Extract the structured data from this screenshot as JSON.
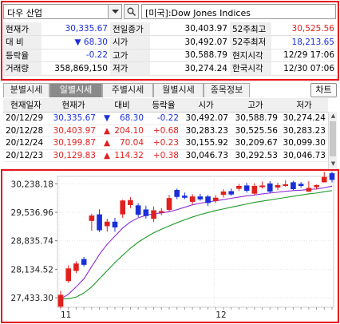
{
  "search": {
    "stock_name": "다우 산업",
    "index_text": "[미국]:Dow Jones Indices"
  },
  "quote": {
    "rows": [
      [
        {
          "t": "현재가",
          "k": "lab"
        },
        {
          "t": "30,335.67",
          "k": "val blue"
        },
        {
          "t": "전일종가",
          "k": "lab"
        },
        {
          "t": "30,403.97",
          "k": "val"
        },
        {
          "t": "52주최고",
          "k": "lab"
        },
        {
          "t": "30,525.56",
          "k": "val red"
        }
      ],
      [
        {
          "t": "대  비",
          "k": "lab"
        },
        {
          "t": "▼   68.30",
          "k": "val blue"
        },
        {
          "t": "시가",
          "k": "lab"
        },
        {
          "t": "30,492.07",
          "k": "val"
        },
        {
          "t": "52주최저",
          "k": "lab"
        },
        {
          "t": "18,213.65",
          "k": "val blue"
        }
      ],
      [
        {
          "t": "등락율",
          "k": "lab"
        },
        {
          "t": "-0.22",
          "k": "val blue"
        },
        {
          "t": "고가",
          "k": "lab"
        },
        {
          "t": "30,588.79",
          "k": "val"
        },
        {
          "t": "현지시각",
          "k": "lab"
        },
        {
          "t": "12/29 17:06",
          "k": "val"
        }
      ],
      [
        {
          "t": "거래량",
          "k": "lab"
        },
        {
          "t": "358,869,150",
          "k": "val"
        },
        {
          "t": "저가",
          "k": "lab"
        },
        {
          "t": "30,274.24",
          "k": "val"
        },
        {
          "t": "한국시각",
          "k": "lab"
        },
        {
          "t": "12/30 07:06",
          "k": "val"
        }
      ]
    ]
  },
  "tabs": [
    "분별시세",
    "일별시세",
    "주별시세",
    "월별시세",
    "종목정보"
  ],
  "active_tab": 1,
  "chart_button": "차트",
  "daily": {
    "headers": [
      "현재일자",
      "현재가",
      "대비",
      "등락율",
      "시가",
      "고가",
      "저가"
    ],
    "rows": [
      {
        "date": "20/12/29",
        "price": "30,335.67",
        "arrow": "▼",
        "change": "68.30",
        "rate": "-0.22",
        "open": "30,492.07",
        "high": "30,588.79",
        "low": "30,274.24",
        "dir": "down"
      },
      {
        "date": "20/12/28",
        "price": "30,403.97",
        "arrow": "▲",
        "change": "204.10",
        "rate": "+0.68",
        "open": "30,283.23",
        "high": "30,525.56",
        "low": "30,283.23",
        "dir": "up"
      },
      {
        "date": "20/12/24",
        "price": "30,199.87",
        "arrow": "▲",
        "change": "70.04",
        "rate": "+0.23",
        "open": "30,155.92",
        "high": "30,209.67",
        "low": "30,099.30",
        "dir": "up"
      },
      {
        "date": "20/12/23",
        "price": "30,129.83",
        "arrow": "▲",
        "change": "114.32",
        "rate": "+0.38",
        "open": "30,046.73",
        "high": "30,292.53",
        "low": "30,046.73",
        "dir": "up"
      }
    ]
  },
  "colors": {
    "up": "#e0201e",
    "down": "#1a2fd8",
    "ma_short": "#8e2bd4",
    "ma_long": "#1e9a2a",
    "frame": "#e8141a"
  },
  "chart_data": {
    "type": "candlestick",
    "y_ticks": [
      "30,238.18",
      "29,536.96",
      "28,835.74",
      "28,134.52",
      "27,433.30"
    ],
    "x_ticks": [
      {
        "label": "11",
        "index": 0
      },
      {
        "label": "12",
        "index": 20
      }
    ],
    "ylim": [
      27200,
      30420
    ],
    "candles": [
      {
        "o": 27220,
        "c": 27500,
        "h": 27600,
        "l": 27180
      },
      {
        "o": 27850,
        "c": 28150,
        "h": 28230,
        "l": 27800
      },
      {
        "o": 28100,
        "c": 28270,
        "h": 28330,
        "l": 28040
      },
      {
        "o": 28380,
        "c": 28250,
        "h": 28440,
        "l": 28200
      },
      {
        "o": 29330,
        "c": 29450,
        "h": 29500,
        "l": 29080
      },
      {
        "o": 29480,
        "c": 29100,
        "h": 29610,
        "l": 29050
      },
      {
        "o": 29200,
        "c": 29300,
        "h": 29380,
        "l": 29060
      },
      {
        "o": 29300,
        "c": 29170,
        "h": 29400,
        "l": 29060
      },
      {
        "o": 29490,
        "c": 29820,
        "h": 29850,
        "l": 29400
      },
      {
        "o": 29720,
        "c": 29830,
        "h": 29910,
        "l": 29640
      },
      {
        "o": 29700,
        "c": 29480,
        "h": 29760,
        "l": 29420
      },
      {
        "o": 29600,
        "c": 29450,
        "h": 29700,
        "l": 29380
      },
      {
        "o": 29380,
        "c": 29580,
        "h": 29680,
        "l": 29300
      },
      {
        "o": 29550,
        "c": 29560,
        "h": 29640,
        "l": 29460
      },
      {
        "o": 29600,
        "c": 29880,
        "h": 29960,
        "l": 29560
      },
      {
        "o": 30080,
        "c": 29920,
        "h": 30120,
        "l": 29860
      },
      {
        "o": 29940,
        "c": 29900,
        "h": 30020,
        "l": 29860
      },
      {
        "o": 29800,
        "c": 29920,
        "h": 29980,
        "l": 29720
      },
      {
        "o": 29920,
        "c": 29860,
        "h": 29990,
        "l": 29820
      },
      {
        "o": 29920,
        "c": 29770,
        "h": 29960,
        "l": 29690
      },
      {
        "o": 29820,
        "c": 29890,
        "h": 29960,
        "l": 29760
      },
      {
        "o": 29970,
        "c": 30040,
        "h": 30100,
        "l": 29900
      },
      {
        "o": 30050,
        "c": 29980,
        "h": 30120,
        "l": 29940
      },
      {
        "o": 30120,
        "c": 30180,
        "h": 30230,
        "l": 30060
      },
      {
        "o": 30190,
        "c": 30070,
        "h": 30260,
        "l": 30020
      },
      {
        "o": 30000,
        "c": 30180,
        "h": 30250,
        "l": 29960
      },
      {
        "o": 30180,
        "c": 30190,
        "h": 30290,
        "l": 30120
      },
      {
        "o": 30240,
        "c": 30050,
        "h": 30300,
        "l": 30010
      },
      {
        "o": 30150,
        "c": 30200,
        "h": 30260,
        "l": 30080
      },
      {
        "o": 30200,
        "c": 30220,
        "h": 30320,
        "l": 30160
      },
      {
        "o": 30270,
        "c": 30110,
        "h": 30310,
        "l": 30080
      },
      {
        "o": 30230,
        "c": 30190,
        "h": 30280,
        "l": 30140
      },
      {
        "o": 30050,
        "c": 30130,
        "h": 30300,
        "l": 30040
      },
      {
        "o": 30160,
        "c": 30200,
        "h": 30220,
        "l": 30100
      },
      {
        "o": 30280,
        "c": 30400,
        "h": 30530,
        "l": 30280
      },
      {
        "o": 30490,
        "c": 30340,
        "h": 30590,
        "l": 30270
      }
    ],
    "ma_short": [
      27400,
      27520,
      27700,
      27900,
      28200,
      28500,
      28750,
      28950,
      29150,
      29300,
      29400,
      29460,
      29500,
      29520,
      29550,
      29600,
      29660,
      29720,
      29760,
      29790,
      29820,
      29850,
      29880,
      29910,
      29940,
      29960,
      29990,
      30010,
      30030,
      30050,
      30070,
      30080,
      30100,
      30110,
      30140,
      30180
    ],
    "ma_long": [
      27400,
      27410,
      27450,
      27550,
      27700,
      27900,
      28100,
      28300,
      28480,
      28650,
      28800,
      28920,
      29030,
      29120,
      29200,
      29280,
      29350,
      29420,
      29480,
      29530,
      29580,
      29620,
      29660,
      29700,
      29740,
      29780,
      29810,
      29840,
      29870,
      29900,
      29930,
      29960,
      29990,
      30010,
      30040,
      30070
    ]
  }
}
